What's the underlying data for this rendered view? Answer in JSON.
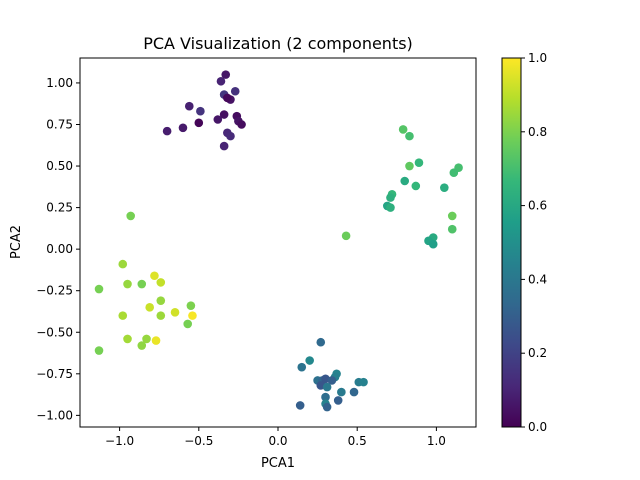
{
  "chart_data": {
    "type": "scatter",
    "title": "PCA Visualization (2 components)",
    "xlabel": "PCA1",
    "ylabel": "PCA2",
    "xlim": [
      -1.25,
      1.25
    ],
    "ylim": [
      -1.07,
      1.15
    ],
    "x_ticks": [
      -1.0,
      -0.5,
      0.0,
      0.5,
      1.0
    ],
    "x_tick_labels": [
      "−1.0",
      "−0.5",
      "0.0",
      "0.5",
      "1.0"
    ],
    "y_ticks": [
      -1.0,
      -0.75,
      -0.5,
      -0.25,
      0.0,
      0.25,
      0.5,
      0.75,
      1.0
    ],
    "y_tick_labels": [
      "−1.00",
      "−0.75",
      "−0.50",
      "−0.25",
      "0.00",
      "0.25",
      "0.50",
      "0.75",
      "1.00"
    ],
    "grid": false,
    "legend": "none",
    "colormap": "viridis",
    "colorbar": {
      "range": [
        0.0,
        1.0
      ],
      "ticks": [
        0.0,
        0.2,
        0.4,
        0.6,
        0.8,
        1.0
      ],
      "tick_labels": [
        "0.0",
        "0.2",
        "0.4",
        "0.6",
        "0.8",
        "1.0"
      ]
    },
    "points": [
      {
        "x": -0.36,
        "y": 1.01,
        "c": 0.1
      },
      {
        "x": -0.33,
        "y": 1.05,
        "c": 0.06
      },
      {
        "x": -0.27,
        "y": 0.95,
        "c": 0.14
      },
      {
        "x": -0.34,
        "y": 0.93,
        "c": 0.16
      },
      {
        "x": -0.3,
        "y": 0.9,
        "c": 0.05
      },
      {
        "x": -0.32,
        "y": 0.91,
        "c": 0.02
      },
      {
        "x": -0.56,
        "y": 0.86,
        "c": 0.09
      },
      {
        "x": -0.49,
        "y": 0.83,
        "c": 0.15
      },
      {
        "x": -0.34,
        "y": 0.81,
        "c": 0.04
      },
      {
        "x": -0.26,
        "y": 0.8,
        "c": 0.03
      },
      {
        "x": -0.38,
        "y": 0.78,
        "c": 0.06
      },
      {
        "x": -0.25,
        "y": 0.77,
        "c": 0.05
      },
      {
        "x": -0.5,
        "y": 0.76,
        "c": 0.01
      },
      {
        "x": -0.23,
        "y": 0.75,
        "c": 0.03
      },
      {
        "x": -0.6,
        "y": 0.73,
        "c": 0.07
      },
      {
        "x": -0.7,
        "y": 0.71,
        "c": 0.08
      },
      {
        "x": -0.32,
        "y": 0.7,
        "c": 0.11
      },
      {
        "x": -0.3,
        "y": 0.68,
        "c": 0.12
      },
      {
        "x": -0.34,
        "y": 0.62,
        "c": 0.1
      },
      {
        "x": 0.79,
        "y": 0.72,
        "c": 0.73
      },
      {
        "x": 0.83,
        "y": 0.68,
        "c": 0.7
      },
      {
        "x": 0.89,
        "y": 0.52,
        "c": 0.66
      },
      {
        "x": 0.83,
        "y": 0.5,
        "c": 0.75
      },
      {
        "x": 1.14,
        "y": 0.49,
        "c": 0.7
      },
      {
        "x": 1.11,
        "y": 0.46,
        "c": 0.69
      },
      {
        "x": 0.8,
        "y": 0.41,
        "c": 0.61
      },
      {
        "x": 0.87,
        "y": 0.38,
        "c": 0.66
      },
      {
        "x": 1.05,
        "y": 0.37,
        "c": 0.62
      },
      {
        "x": 0.72,
        "y": 0.33,
        "c": 0.66
      },
      {
        "x": 0.71,
        "y": 0.31,
        "c": 0.63
      },
      {
        "x": 0.69,
        "y": 0.26,
        "c": 0.58
      },
      {
        "x": 0.71,
        "y": 0.25,
        "c": 0.63
      },
      {
        "x": 1.1,
        "y": 0.2,
        "c": 0.77
      },
      {
        "x": 1.1,
        "y": 0.12,
        "c": 0.72
      },
      {
        "x": 0.43,
        "y": 0.08,
        "c": 0.77
      },
      {
        "x": 0.98,
        "y": 0.07,
        "c": 0.61
      },
      {
        "x": 0.95,
        "y": 0.05,
        "c": 0.58
      },
      {
        "x": 0.98,
        "y": 0.03,
        "c": 0.56
      },
      {
        "x": -0.93,
        "y": 0.2,
        "c": 0.79
      },
      {
        "x": -0.98,
        "y": -0.09,
        "c": 0.85
      },
      {
        "x": -0.78,
        "y": -0.16,
        "c": 0.95
      },
      {
        "x": -0.74,
        "y": -0.2,
        "c": 0.91
      },
      {
        "x": -0.95,
        "y": -0.21,
        "c": 0.84
      },
      {
        "x": -0.86,
        "y": -0.21,
        "c": 0.79
      },
      {
        "x": -1.13,
        "y": -0.24,
        "c": 0.79
      },
      {
        "x": -0.74,
        "y": -0.31,
        "c": 0.84
      },
      {
        "x": -0.55,
        "y": -0.34,
        "c": 0.8
      },
      {
        "x": -0.81,
        "y": -0.35,
        "c": 0.92
      },
      {
        "x": -0.65,
        "y": -0.38,
        "c": 0.93
      },
      {
        "x": -0.98,
        "y": -0.4,
        "c": 0.87
      },
      {
        "x": -0.74,
        "y": -0.4,
        "c": 0.85
      },
      {
        "x": -0.54,
        "y": -0.4,
        "c": 0.99
      },
      {
        "x": -0.57,
        "y": -0.45,
        "c": 0.79
      },
      {
        "x": -0.95,
        "y": -0.54,
        "c": 0.86
      },
      {
        "x": -0.83,
        "y": -0.54,
        "c": 0.84
      },
      {
        "x": -0.77,
        "y": -0.55,
        "c": 0.97
      },
      {
        "x": -0.86,
        "y": -0.58,
        "c": 0.83
      },
      {
        "x": -1.13,
        "y": -0.61,
        "c": 0.79
      },
      {
        "x": 0.27,
        "y": -0.56,
        "c": 0.34
      },
      {
        "x": 0.2,
        "y": -0.67,
        "c": 0.47
      },
      {
        "x": 0.15,
        "y": -0.71,
        "c": 0.38
      },
      {
        "x": 0.37,
        "y": -0.75,
        "c": 0.45
      },
      {
        "x": 0.36,
        "y": -0.77,
        "c": 0.43
      },
      {
        "x": 0.25,
        "y": -0.79,
        "c": 0.37
      },
      {
        "x": 0.28,
        "y": -0.79,
        "c": 0.33
      },
      {
        "x": 0.3,
        "y": -0.78,
        "c": 0.27
      },
      {
        "x": 0.34,
        "y": -0.79,
        "c": 0.3
      },
      {
        "x": 0.51,
        "y": -0.8,
        "c": 0.42
      },
      {
        "x": 0.54,
        "y": -0.8,
        "c": 0.44
      },
      {
        "x": 0.27,
        "y": -0.82,
        "c": 0.27
      },
      {
        "x": 0.31,
        "y": -0.83,
        "c": 0.4
      },
      {
        "x": 0.4,
        "y": -0.86,
        "c": 0.41
      },
      {
        "x": 0.48,
        "y": -0.86,
        "c": 0.33
      },
      {
        "x": 0.3,
        "y": -0.89,
        "c": 0.36
      },
      {
        "x": 0.38,
        "y": -0.91,
        "c": 0.3
      },
      {
        "x": 0.3,
        "y": -0.93,
        "c": 0.45
      },
      {
        "x": 0.14,
        "y": -0.94,
        "c": 0.3
      },
      {
        "x": 0.31,
        "y": -0.95,
        "c": 0.32
      }
    ]
  }
}
